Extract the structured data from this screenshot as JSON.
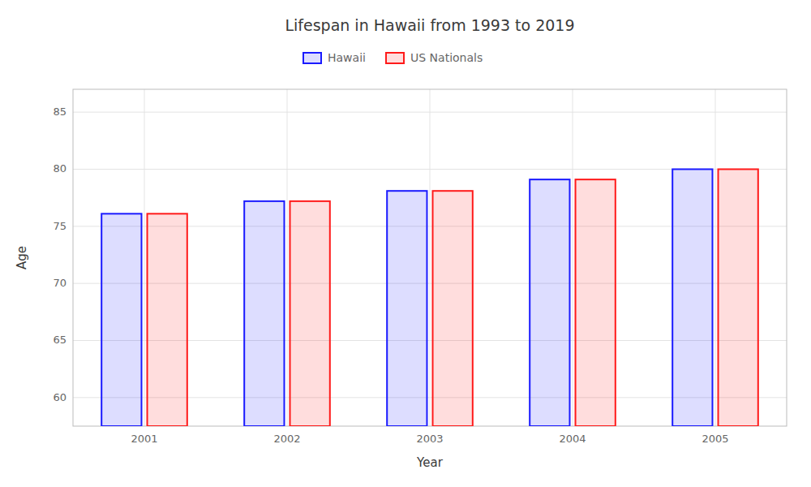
{
  "chart_data": {
    "type": "bar",
    "title": "Lifespan in Hawaii from 1993 to 2019",
    "x_label": "Year",
    "y_label": "Age",
    "categories": [
      "2001",
      "2002",
      "2003",
      "2004",
      "2005"
    ],
    "series": [
      {
        "name": "Hawaii",
        "color": "#1a1aff",
        "values": [
          76.1,
          77.2,
          78.1,
          79.1,
          80.0
        ]
      },
      {
        "name": "US Nationals",
        "color": "#ff1a1a",
        "values": [
          76.1,
          77.2,
          78.1,
          79.1,
          80.0
        ]
      }
    ],
    "ylim": [
      57.5,
      87
    ],
    "yticks": [
      60,
      65,
      70,
      75,
      80,
      85
    ],
    "grid": true,
    "legend": "top"
  }
}
